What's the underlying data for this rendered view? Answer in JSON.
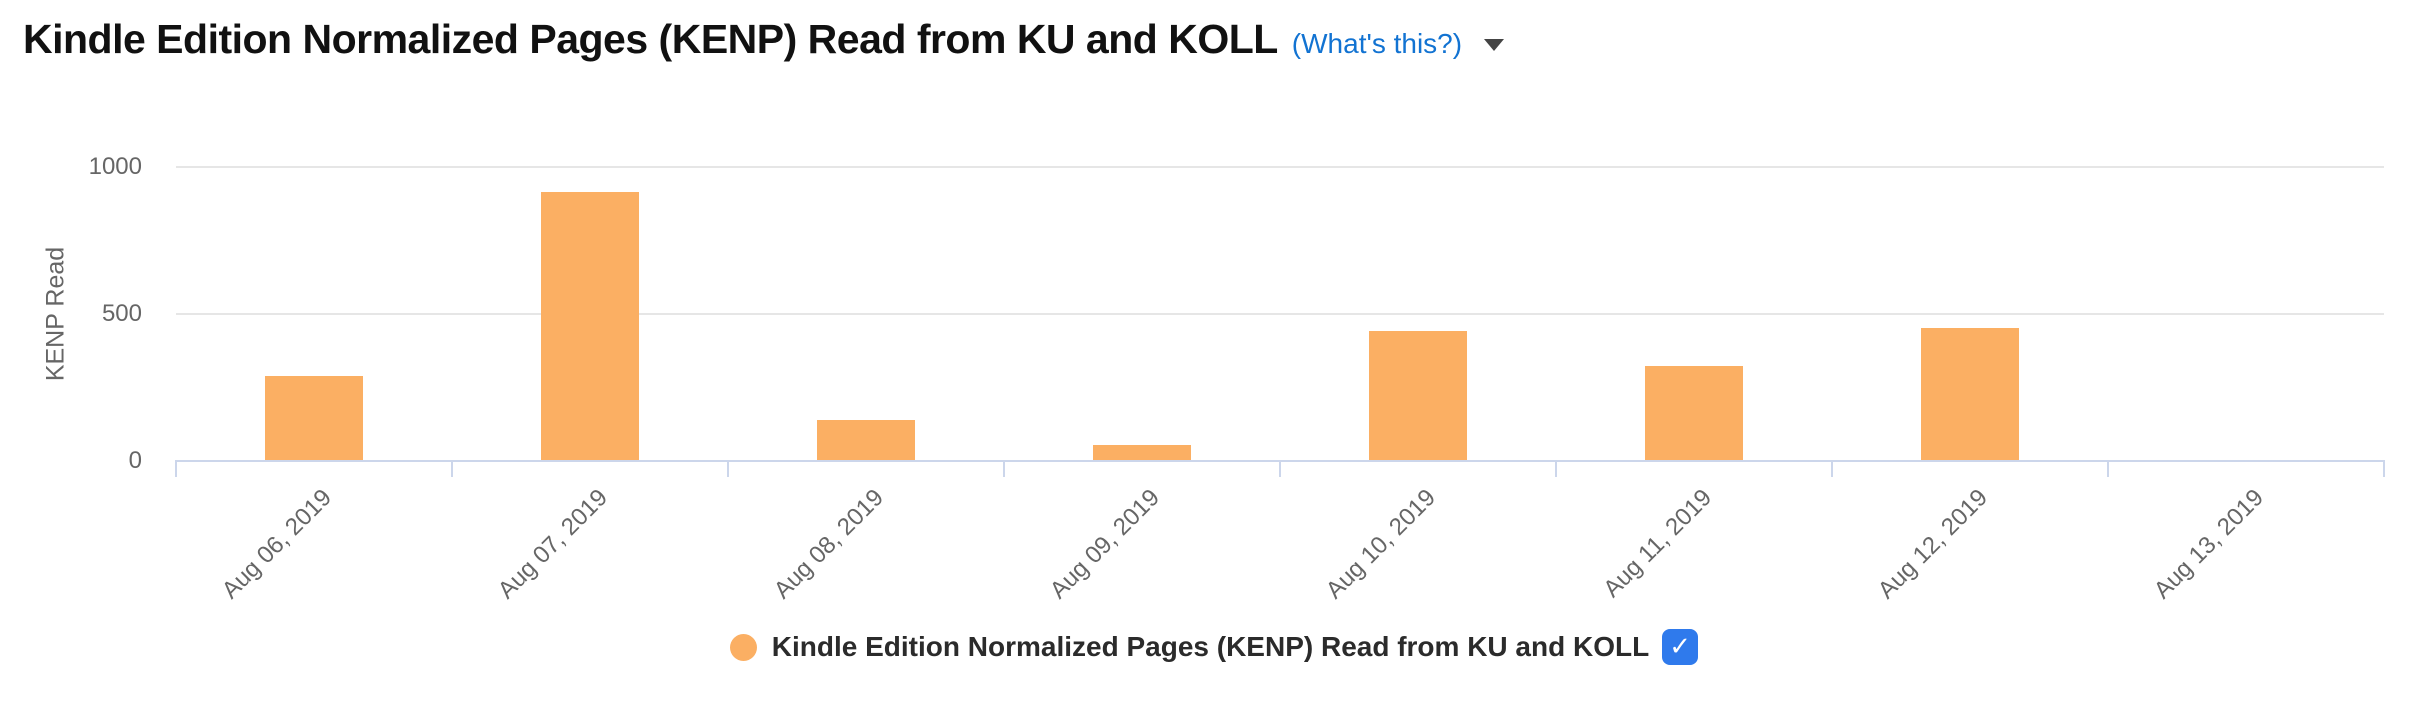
{
  "header": {
    "title": "Kindle Edition Normalized Pages (KENP) Read from KU and KOLL",
    "whats_this": "(What's this?)",
    "link_color": "#1273D2",
    "caret_color": "#444444"
  },
  "chart_data": {
    "type": "bar",
    "title": "Kindle Edition Normalized Pages (KENP) Read from KU and KOLL",
    "series_name": "Kindle Edition Normalized Pages (KENP) Read from KU and KOLL",
    "categories": [
      "Aug 06, 2019",
      "Aug 07, 2019",
      "Aug 08, 2019",
      "Aug 09, 2019",
      "Aug 10, 2019",
      "Aug 11, 2019",
      "Aug 12, 2019",
      "Aug 13, 2019"
    ],
    "values": [
      285,
      910,
      135,
      50,
      440,
      320,
      450,
      0
    ],
    "ylabel": "KENP Read",
    "xlabel": "",
    "ylim": [
      0,
      1000
    ],
    "yticks": [
      0,
      500,
      1000
    ],
    "grid": "horizontal",
    "legend_position": "bottom",
    "bar_color": "#FBAF63",
    "grid_color": "#E6E6E6",
    "axis_line_color": "#CCD6EB",
    "tick_label_color": "#666666"
  },
  "legend": {
    "label": "Kindle Edition Normalized Pages (KENP) Read from KU and KOLL",
    "marker_color": "#FBAF63",
    "checkbox": {
      "checked": true,
      "color": "#2F7AEC",
      "checkmark_glyph": "✓"
    }
  }
}
